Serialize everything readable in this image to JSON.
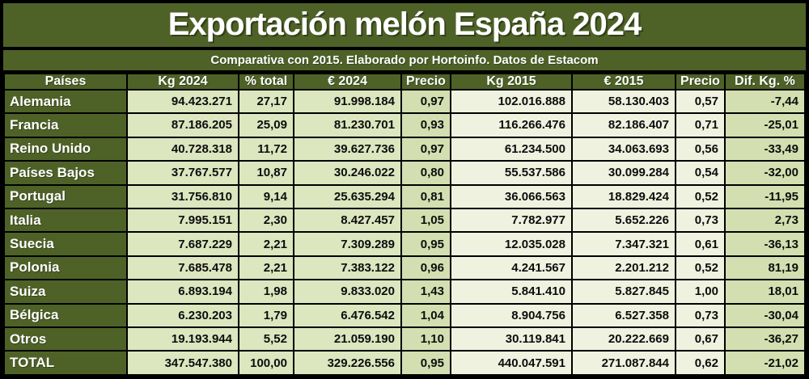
{
  "title": "Exportación melón España 2024",
  "subtitle": "Comparativa con 2015. Elaborado por Hortoinfo. Datos de Estacom",
  "colors": {
    "olive_green": "#4e6227",
    "cell_2024": "#dce6bf",
    "cell_precio_2024": "#d3dfb0",
    "cell_2015": "#eef2df",
    "cell_dif": "#d3dfb0",
    "border": "#000000",
    "header_text": "#ffffff",
    "cell_text": "#0d0d0d"
  },
  "chart_data": {
    "type": "table",
    "title": "Exportación melón España 2024",
    "subtitle": "Comparativa con 2015. Elaborado por Hortoinfo. Datos de Estacom",
    "columns": [
      "Países",
      "Kg 2024",
      "% total",
      "€ 2024",
      "Precio",
      "Kg 2015",
      "€ 2015",
      "Precio",
      "Dif. Kg. %"
    ],
    "rows": [
      [
        "Alemania",
        "94.423.271",
        "27,17",
        "91.998.184",
        "0,97",
        "102.016.888",
        "58.130.403",
        "0,57",
        "-7,44"
      ],
      [
        "Francia",
        "87.186.205",
        "25,09",
        "81.230.701",
        "0,93",
        "116.266.476",
        "82.186.407",
        "0,71",
        "-25,01"
      ],
      [
        "Reino Unido",
        "40.728.318",
        "11,72",
        "39.627.736",
        "0,97",
        "61.234.500",
        "34.063.693",
        "0,56",
        "-33,49"
      ],
      [
        "Países Bajos",
        "37.767.577",
        "10,87",
        "30.246.022",
        "0,80",
        "55.537.586",
        "30.099.284",
        "0,54",
        "-32,00"
      ],
      [
        "Portugal",
        "31.756.810",
        "9,14",
        "25.635.294",
        "0,81",
        "36.066.563",
        "18.829.424",
        "0,52",
        "-11,95"
      ],
      [
        "Italia",
        "7.995.151",
        "2,30",
        "8.427.457",
        "1,05",
        "7.782.977",
        "5.652.226",
        "0,73",
        "2,73"
      ],
      [
        "Suecia",
        "7.687.229",
        "2,21",
        "7.309.289",
        "0,95",
        "12.035.028",
        "7.347.321",
        "0,61",
        "-36,13"
      ],
      [
        "Polonia",
        "7.685.478",
        "2,21",
        "7.383.122",
        "0,96",
        "4.241.567",
        "2.201.212",
        "0,52",
        "81,19"
      ],
      [
        "Suiza",
        "6.893.194",
        "1,98",
        "9.833.020",
        "1,43",
        "5.841.410",
        "5.827.845",
        "1,00",
        "18,01"
      ],
      [
        "Bélgica",
        "6.230.203",
        "1,79",
        "6.476.542",
        "1,04",
        "8.904.756",
        "6.527.358",
        "0,73",
        "-30,04"
      ],
      [
        "Otros",
        "19.193.944",
        "5,52",
        "21.059.190",
        "1,10",
        "30.119.841",
        "20.222.669",
        "0,67",
        "-36,27"
      ],
      [
        "TOTAL",
        "347.547.380",
        "100,00",
        "329.226.556",
        "0,95",
        "440.047.591",
        "271.087.844",
        "0,62",
        "-21,02"
      ]
    ]
  }
}
